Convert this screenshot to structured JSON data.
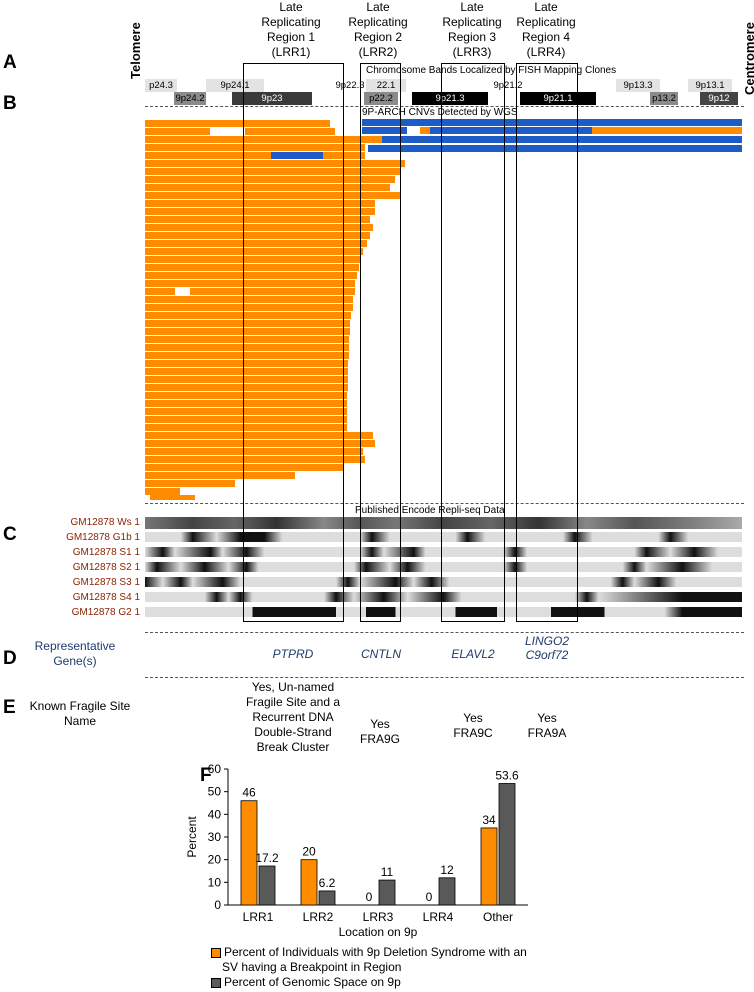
{
  "panels": {
    "a": "A",
    "b": "B",
    "c": "C",
    "d": "D",
    "e": "E",
    "f": "F"
  },
  "telomere_label": "Telomere",
  "centromere_label": "Centromere",
  "lrr_headers": [
    {
      "line1": "Late",
      "line2": "Replicating",
      "line3": "Region 1",
      "line4": "(LRR1)"
    },
    {
      "line1": "Late",
      "line2": "Replicating",
      "line3": "Region 2",
      "line4": "(LRR2)"
    },
    {
      "line1": "Late",
      "line2": "Replicating",
      "line3": "Region 3",
      "line4": "(LRR3)"
    },
    {
      "line1": "Late",
      "line2": "Replicating",
      "line3": "Region 4",
      "line4": "(LRR4)"
    }
  ],
  "panel_a_caption": "Chromosome Bands Localized by FISH Mapping Clones",
  "bands_top": [
    "p24.3",
    "9p24.1",
    "9p22.3",
    "22.1",
    "9p21.2",
    "9p13.3",
    "9p13.1"
  ],
  "bands_bottom": [
    "9p24.2",
    "9p23",
    "p22.2",
    "9p21.3",
    "9p21.1",
    "p13.2",
    "9p12"
  ],
  "panel_b_caption": "9P-ARCH CNVs Detected by WGS",
  "panel_c_caption": "Published Encode Repli-seq Data",
  "repliseq_rows": [
    "GM12878 Ws 1",
    "GM12878 G1b 1",
    "GM12878 S1 1",
    "GM12878 S2 1",
    "GM12878 S3 1",
    "GM12878 S4 1",
    "GM12878 G2 1"
  ],
  "panel_d": {
    "row_header": "Representative Gene(s)",
    "genes": [
      "PTPRD",
      "CNTLN",
      "ELAVL2",
      "LINGO2",
      "C9orf72"
    ]
  },
  "panel_e": {
    "row_header_line1": "Known Fragile Site",
    "row_header_line2": "Name",
    "sites": [
      {
        "line1": "Yes, Un-named",
        "line2": "Fragile Site and a",
        "line3": "Recurrent DNA",
        "line4": "Double-Strand",
        "line5": "Break Cluster"
      },
      {
        "line1": "Yes",
        "line2": "FRA9G"
      },
      {
        "line1": "Yes",
        "line2": "FRA9C"
      },
      {
        "line1": "Yes",
        "line2": "FRA9A"
      }
    ]
  },
  "colors": {
    "orange": "#FF8C00",
    "blue": "#1E5BC6",
    "gray": "#595959",
    "label_red": "#8B2500",
    "gene_blue": "#1F3A6B"
  },
  "chart_data": {
    "type": "bar",
    "categories": [
      "LRR1",
      "LRR2",
      "LRR3",
      "LRR4",
      "Other"
    ],
    "series": [
      {
        "name": "Percent of Individuals with 9p Deletion Syndrome with an SV having a Breakpoint in Region",
        "values": [
          46,
          20,
          0,
          0,
          34
        ],
        "labels": [
          "46",
          "20",
          "0",
          "0",
          "34"
        ],
        "color": "#FF8C00"
      },
      {
        "name": "Percent of Genomic Space on 9p",
        "values": [
          17.2,
          6.2,
          11,
          12,
          53.6
        ],
        "labels": [
          "17.2",
          "6.2",
          "11",
          "12",
          "53.6"
        ],
        "color": "#595959"
      }
    ],
    "xlabel": "Location on 9p",
    "ylabel": "Percent",
    "ylim": [
      0,
      60
    ],
    "yticks": [
      "0",
      "10",
      "20",
      "30",
      "40",
      "50",
      "60"
    ],
    "legend_line1": "Percent of Individuals with 9p Deletion Syndrome with an",
    "legend_line2": "SV having a Breakpoint in Region",
    "legend2": "Percent of Genomic Space on 9p"
  }
}
